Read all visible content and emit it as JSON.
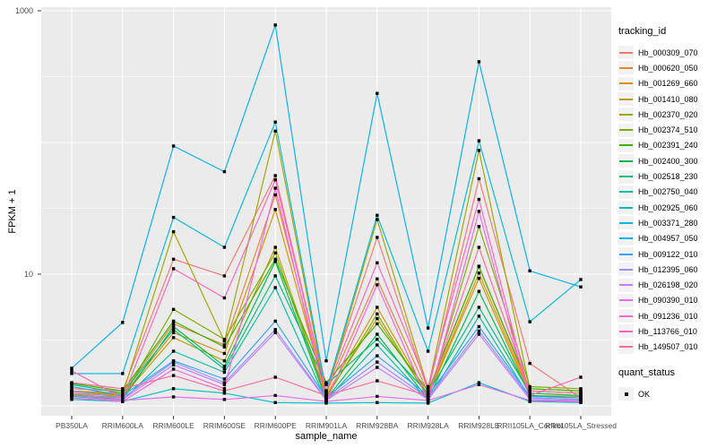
{
  "panel": {
    "bg": "#EBEBEB",
    "grid_color": "#FFFFFF",
    "tick_color": "#333333",
    "axis_text_color": "#4D4D4D"
  },
  "y_axis": {
    "title": "FPKM + 1",
    "tick_labels": [
      "1000",
      "10"
    ],
    "tick_values": [
      1000,
      10
    ]
  },
  "x_axis": {
    "title": "sample_name"
  },
  "legend": {
    "color_title": "tracking_id",
    "shape_title": "quant_status",
    "shape_items": [
      {
        "label": "OK",
        "shape": "filled-square",
        "color": "#000000"
      }
    ]
  },
  "chart_data": {
    "type": "line",
    "title": "",
    "xlabel": "sample_name",
    "ylabel": "FPKM + 1",
    "y_scale": "log10",
    "ylim": [
      1,
      1000
    ],
    "y_major_ticks": [
      1,
      10,
      100,
      1000
    ],
    "y_minor_ticks": [
      3.162,
      31.62,
      316.2
    ],
    "grid": true,
    "legend_position": "right",
    "point_color": "#000000",
    "point_shape": "filled-square",
    "categories": [
      "PB350LA",
      "RRIM600LA",
      "RRIM600LE",
      "RRIM600SE",
      "RRIM600PE",
      "RRIM901LA",
      "RRIM928BA",
      "RRIM928LA",
      "RRIM928LE",
      "RRII105LA_Control",
      "RRII105LA_Stressed"
    ],
    "series": [
      {
        "name": "Hb_000309_070",
        "color": "#F8766D",
        "values": [
          1.35,
          1.3,
          13,
          9.7,
          56,
          1.3,
          19,
          1.3,
          53,
          2.1,
          1.15
        ]
      },
      {
        "name": "Hb_000620_050",
        "color": "#EA8331",
        "values": [
          1.3,
          1.25,
          4.2,
          2.9,
          40,
          1.25,
          9.2,
          1.25,
          11.5,
          1.3,
          1.25
        ]
      },
      {
        "name": "Hb_001269_660",
        "color": "#D89000",
        "values": [
          1.28,
          1.2,
          3.6,
          2.5,
          31,
          1.2,
          5.6,
          1.2,
          10.2,
          1.25,
          1.2
        ]
      },
      {
        "name": "Hb_001410_080",
        "color": "#C09B00",
        "values": [
          1.25,
          1.18,
          3.3,
          2.2,
          16,
          1.18,
          4.6,
          1.18,
          9.3,
          1.2,
          1.18
        ]
      },
      {
        "name": "Hb_002370_020",
        "color": "#A3A500",
        "values": [
          1.3,
          1.22,
          21,
          3.1,
          122,
          1.22,
          26,
          1.35,
          87,
          1.35,
          1.3
        ]
      },
      {
        "name": "Hb_002374_510",
        "color": "#7CAE00",
        "values": [
          1.22,
          1.15,
          5.4,
          3.2,
          14.5,
          1.15,
          5.0,
          1.15,
          23,
          1.4,
          1.35
        ]
      },
      {
        "name": "Hb_002391_240",
        "color": "#39B600",
        "values": [
          1.48,
          1.3,
          4.4,
          2.8,
          13,
          1.5,
          4.2,
          1.3,
          11.4,
          1.35,
          1.3
        ]
      },
      {
        "name": "Hb_002400_300",
        "color": "#00BB4E",
        "values": [
          1.2,
          1.12,
          4.0,
          2.0,
          12.5,
          1.12,
          3.5,
          1.12,
          7.4,
          1.2,
          1.15
        ]
      },
      {
        "name": "Hb_002518_230",
        "color": "#00BF7D",
        "values": [
          1.45,
          1.25,
          3.8,
          1.9,
          9.7,
          1.45,
          3.2,
          1.25,
          5.6,
          1.25,
          1.2
        ]
      },
      {
        "name": "Hb_002750_040",
        "color": "#00C1A3",
        "values": [
          1.18,
          1.1,
          2.6,
          1.8,
          7.9,
          1.1,
          2.9,
          1.1,
          4.8,
          1.15,
          1.12
        ]
      },
      {
        "name": "Hb_002925_060",
        "color": "#00BFC4",
        "values": [
          1.12,
          1.08,
          1.35,
          1.25,
          1.06,
          1.05,
          1.06,
          1.05,
          1.5,
          1.08,
          1.06
        ]
      },
      {
        "name": "Hb_003371_280",
        "color": "#00BAE0",
        "values": [
          1.76,
          1.76,
          27,
          16,
          143,
          1.3,
          28,
          2.6,
          103,
          4.35,
          9.1
        ]
      },
      {
        "name": "Hb_004957_050",
        "color": "#00B0F6",
        "values": [
          1.93,
          4.3,
          94,
          60,
          780,
          2.2,
          236,
          3.9,
          410,
          10.6,
          8.0
        ]
      },
      {
        "name": "Hb_009122_010",
        "color": "#35A2FF",
        "values": [
          1.4,
          1.2,
          2.2,
          1.6,
          4.4,
          1.15,
          2.4,
          1.2,
          4.0,
          1.18,
          1.15
        ]
      },
      {
        "name": "Hb_012395_060",
        "color": "#9590FF",
        "values": [
          1.3,
          1.15,
          2.15,
          1.5,
          3.8,
          1.12,
          2.15,
          1.15,
          3.7,
          1.15,
          1.12
        ]
      },
      {
        "name": "Hb_026198_020",
        "color": "#C77CFF",
        "values": [
          1.25,
          1.12,
          2.05,
          1.45,
          3.6,
          1.1,
          1.96,
          1.12,
          3.5,
          1.12,
          1.1
        ]
      },
      {
        "name": "Hb_090390_010",
        "color": "#E76BF3",
        "values": [
          1.2,
          1.1,
          1.17,
          1.12,
          1.2,
          1.08,
          1.18,
          1.1,
          1.45,
          1.1,
          1.08
        ]
      },
      {
        "name": "Hb_091236_010",
        "color": "#FA62DB",
        "values": [
          1.15,
          1.08,
          1.9,
          1.35,
          45,
          1.08,
          8.3,
          1.08,
          30,
          1.1,
          1.08
        ]
      },
      {
        "name": "Hb_113766_010",
        "color": "#FF62BC",
        "values": [
          1.85,
          1.14,
          11,
          6.6,
          52,
          1.3,
          12.2,
          1.4,
          37,
          1.2,
          1.65
        ]
      },
      {
        "name": "Hb_149507_010",
        "color": "#FF6A98",
        "values": [
          1.5,
          1.35,
          1.7,
          1.3,
          1.65,
          1.2,
          1.55,
          1.2,
          16,
          1.3,
          1.25
        ]
      }
    ]
  }
}
